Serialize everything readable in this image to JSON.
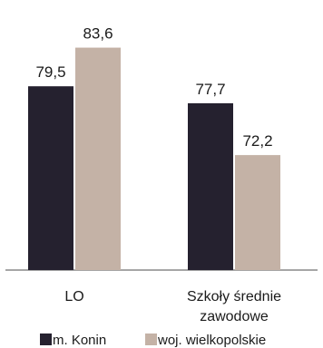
{
  "chart_data": {
    "type": "bar",
    "categories": [
      "LO",
      "Szkoły średnie zawodowe"
    ],
    "category_lines": [
      [
        "LO"
      ],
      [
        "Szkoły średnie",
        "zawodowe"
      ]
    ],
    "series": [
      {
        "name": "m. Konin",
        "values": [
          79.5,
          77.7
        ],
        "value_labels": [
          "79,5",
          "77,7"
        ],
        "color": "#25212f"
      },
      {
        "name": "woj. wielkopolskie",
        "values": [
          83.6,
          72.2
        ],
        "value_labels": [
          "83,6",
          "72,2"
        ],
        "color": "#c4b2a6"
      }
    ],
    "ylim": [
      60,
      85
    ],
    "grid": false,
    "legend_position": "bottom",
    "baseline_color": "#888888"
  }
}
